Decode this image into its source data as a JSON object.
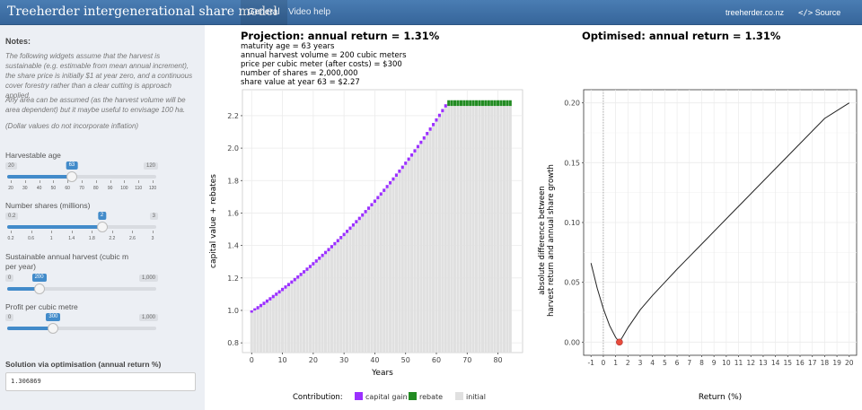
{
  "navbar": {
    "brand": "Treeherder intergenerational share model",
    "tabs": [
      {
        "label": "General",
        "active": true
      },
      {
        "label": "Video help",
        "active": false
      }
    ],
    "site_link": "treeherder.co.nz",
    "source_code": "Source Code",
    "accent": "#3c6ea5"
  },
  "sidebar": {
    "notes_title": "Notes:",
    "notes": [
      "The following widgets assume that the harvest is sustainable (e.g. estimable from mean annual increment), the share price is initially $1 at year zero, and a continuous cover forestry rather than a clear cutting is approach applied.",
      "Any area can be assumed (as the harvest volume will be area dependent) but it maybe useful to envisage 100 ha.",
      "(Dollar values do not incorporate inflation)"
    ],
    "sliders": [
      {
        "label": "Harvestable age",
        "min": 20,
        "max": 120,
        "value": 63,
        "min_label": "20",
        "max_label": "120",
        "value_label": "63",
        "ticks": [
          "20",
          "30",
          "40",
          "50",
          "60",
          "70",
          "80",
          "90",
          "100",
          "110",
          "120"
        ]
      },
      {
        "label": "Number shares (millions)",
        "min": 0.2,
        "max": 3,
        "value": 2,
        "min_label": "0.2",
        "max_label": "3",
        "value_label": "2",
        "ticks": [
          "0.2",
          "0.6",
          "1",
          "1.4",
          "1.8",
          "2.2",
          "2.6",
          "3"
        ]
      },
      {
        "label": "Sustainable annual harvest (cubic m per year)",
        "min": 0,
        "max": 1000,
        "value": 200,
        "min_label": "0",
        "max_label": "1,000",
        "value_label": "200",
        "ticks": []
      },
      {
        "label": "Profit per cubic metre",
        "min": 0,
        "max": 1000,
        "value": 300,
        "min_label": "0",
        "max_label": "1,000",
        "value_label": "300",
        "ticks": []
      }
    ],
    "solution_title": "Solution via optimisation (annual return %)",
    "solution_value": "1.306869"
  },
  "projection": {
    "title": "Projection: annual return = 1.31%",
    "lines": [
      "maturity age = 63 years",
      "annual harvest volume = 200 cubic meters",
      "price per cubic meter (after costs) = $300",
      "number of shares = 2,000,000",
      "share value at year 63 = $2.27"
    ]
  },
  "optimised": {
    "title": "Optimised: annual return = 1.31%"
  },
  "chart_data": [
    {
      "type": "bar",
      "xlabel": "Years",
      "ylabel": "capital value + rebates",
      "xlim": [
        -3,
        88
      ],
      "ylim": [
        0.74,
        2.36
      ],
      "x_ticks": [
        "0",
        "10",
        "20",
        "30",
        "40",
        "50",
        "60",
        "70",
        "80"
      ],
      "y_ticks": [
        "0.8",
        "1.0",
        "1.2",
        "1.4",
        "1.6",
        "1.8",
        "2.0",
        "2.2"
      ],
      "annual_return": 0.0131,
      "maturity_age": 63,
      "final_year": 84,
      "rebate_top": 2.295,
      "legend_title": "Contribution:",
      "legend": [
        {
          "name": "capital gain",
          "color": "#9b30ff"
        },
        {
          "name": "rebate",
          "color": "#228b22"
        },
        {
          "name": "initial",
          "color": "#e0e0e0"
        }
      ]
    },
    {
      "type": "line",
      "xlabel": "Return (%)",
      "ylabel_lines": [
        "absolute difference between",
        "harvest return and annual share growth"
      ],
      "xlim": [
        -1.6,
        20.6
      ],
      "ylim": [
        -0.011,
        0.211
      ],
      "x_ticks": [
        "-1",
        "0",
        "1",
        "2",
        "3",
        "4",
        "5",
        "6",
        "7",
        "8",
        "9",
        "10",
        "11",
        "12",
        "13",
        "14",
        "15",
        "16",
        "17",
        "18",
        "19",
        "20"
      ],
      "y_ticks": [
        "0.00",
        "0.05",
        "0.10",
        "0.15",
        "0.20"
      ],
      "points": [
        [
          -1.0,
          0.066
        ],
        [
          -0.5,
          0.045
        ],
        [
          0.0,
          0.028
        ],
        [
          0.5,
          0.014
        ],
        [
          1.0,
          0.004
        ],
        [
          1.31,
          0.0
        ],
        [
          1.6,
          0.005
        ],
        [
          2.0,
          0.012
        ],
        [
          3.0,
          0.027
        ],
        [
          4.0,
          0.039
        ],
        [
          5.0,
          0.05
        ],
        [
          6.0,
          0.061
        ],
        [
          8.0,
          0.082
        ],
        [
          10.0,
          0.103
        ],
        [
          12.0,
          0.124
        ],
        [
          14.0,
          0.145
        ],
        [
          16.0,
          0.166
        ],
        [
          18.0,
          0.187
        ],
        [
          20.0,
          0.2
        ]
      ],
      "optimum": [
        1.31,
        0.0
      ],
      "vline_x": 0,
      "optimum_color": "#e74c3c"
    }
  ]
}
